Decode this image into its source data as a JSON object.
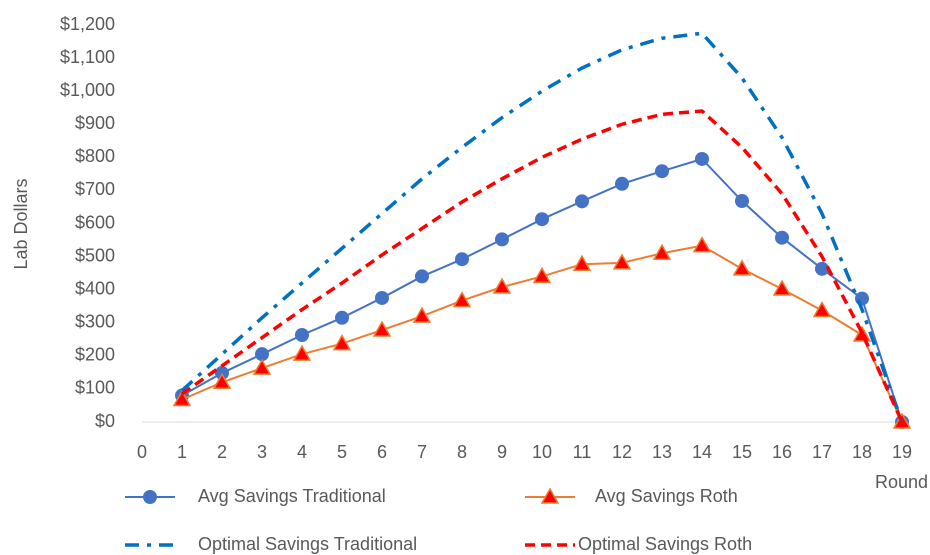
{
  "chart_data": {
    "type": "line",
    "y_label": "Lab Dollars",
    "x_label": "Round",
    "x": [
      1,
      2,
      3,
      4,
      5,
      6,
      7,
      8,
      9,
      10,
      11,
      12,
      13,
      14,
      15,
      16,
      17,
      18,
      19
    ],
    "xlim": [
      0,
      19
    ],
    "xticks": [
      0,
      1,
      2,
      3,
      4,
      5,
      6,
      7,
      8,
      9,
      10,
      11,
      12,
      13,
      14,
      15,
      16,
      17,
      18,
      19
    ],
    "ylim": [
      0,
      1200
    ],
    "yticks": [
      {
        "value": 0,
        "label": "$0"
      },
      {
        "value": 100,
        "label": "$100"
      },
      {
        "value": 200,
        "label": "$200"
      },
      {
        "value": 300,
        "label": "$300"
      },
      {
        "value": 400,
        "label": "$400"
      },
      {
        "value": 500,
        "label": "$500"
      },
      {
        "value": 600,
        "label": "$600"
      },
      {
        "value": 700,
        "label": "$700"
      },
      {
        "value": 800,
        "label": "$800"
      },
      {
        "value": 900,
        "label": "$900"
      },
      {
        "value": 1000,
        "label": "$1,000"
      },
      {
        "value": 1100,
        "label": "$1,100"
      },
      {
        "value": 1200,
        "label": "$1,200"
      }
    ],
    "grid": false,
    "legend": "bottom",
    "series": [
      {
        "name": "Avg Savings Traditional",
        "color": "#4472c4",
        "marker": "circle",
        "dash": "solid",
        "values": [
          80,
          148,
          205,
          263,
          315,
          375,
          440,
          492,
          552,
          613,
          667,
          720,
          758,
          795,
          668,
          557,
          463,
          373,
          0
        ]
      },
      {
        "name": "Avg Savings Roth",
        "color": "#ed7d31",
        "marker": "triangle",
        "marker_color": "#ff0000",
        "dash": "solid",
        "values": [
          68,
          120,
          163,
          205,
          237,
          278,
          320,
          367,
          408,
          440,
          477,
          481,
          510,
          533,
          463,
          402,
          337,
          263,
          0
        ]
      },
      {
        "name": "Optimal Savings Traditional",
        "color": "#0070c0",
        "marker": "none",
        "dash": "dashdot",
        "values": [
          95,
          205,
          315,
          420,
          525,
          630,
          735,
          830,
          920,
          1000,
          1070,
          1125,
          1160,
          1175,
          1040,
          860,
          630,
          340,
          0
        ]
      },
      {
        "name": "Optimal Savings Roth",
        "color": "#ff0000",
        "marker": "none",
        "dash": "dash",
        "values": [
          85,
          170,
          255,
          340,
          420,
          505,
          585,
          665,
          735,
          800,
          855,
          900,
          930,
          940,
          830,
          690,
          500,
          270,
          0
        ]
      }
    ]
  }
}
